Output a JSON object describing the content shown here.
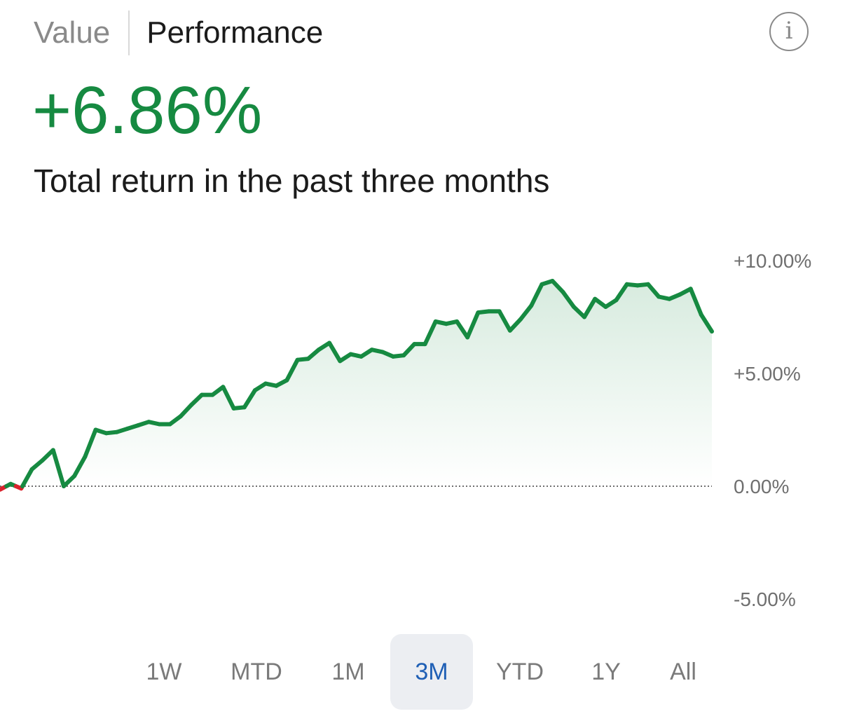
{
  "tabs": {
    "value_label": "Value",
    "performance_label": "Performance",
    "active": "Performance"
  },
  "info_icon": "info-icon",
  "summary": {
    "total_return": "+6.86%",
    "description": "Total return in the past three months"
  },
  "colors": {
    "positive": "#168a41",
    "negative": "#d9232d",
    "tab_active_bg": "#eceef2",
    "range_active_text": "#1f5fb5",
    "range_inactive_text": "#7a7a7a"
  },
  "chart_data": {
    "type": "area",
    "title": "",
    "xlabel": "",
    "ylabel": "",
    "ylim": [
      -5,
      10
    ],
    "y_ticks": [
      {
        "value": 10,
        "label": "+10.00%"
      },
      {
        "value": 5,
        "label": "+5.00%"
      },
      {
        "value": 0,
        "label": "0.00%"
      },
      {
        "value": -5,
        "label": "-5.00%"
      }
    ],
    "baseline": 0,
    "baseline_style": "dotted",
    "fill": "gradient",
    "grid": false,
    "legend": "none",
    "series": [
      {
        "values": [
          -0.15,
          0.1,
          -0.1,
          0.75,
          1.15,
          1.6,
          0.0,
          0.45,
          1.3,
          2.5,
          2.35,
          2.4,
          2.55,
          2.7,
          2.85,
          2.75,
          2.75,
          3.1,
          3.6,
          4.05,
          4.05,
          4.4,
          3.45,
          3.5,
          4.25,
          4.55,
          4.45,
          4.7,
          5.6,
          5.65,
          6.05,
          6.35,
          5.55,
          5.85,
          5.75,
          6.05,
          5.95,
          5.75,
          5.8,
          6.3,
          6.3,
          7.3,
          7.2,
          7.3,
          6.6,
          7.7,
          7.75,
          7.75,
          6.9,
          7.4,
          8.0,
          8.95,
          9.1,
          8.6,
          7.95,
          7.5,
          8.3,
          7.95,
          8.25,
          8.95,
          8.9,
          8.95,
          8.4,
          8.3,
          8.5,
          8.75,
          7.6,
          6.86
        ]
      }
    ]
  },
  "ranges": {
    "items": [
      "1W",
      "MTD",
      "1M",
      "3M",
      "YTD",
      "1Y",
      "All"
    ],
    "active": "3M"
  }
}
